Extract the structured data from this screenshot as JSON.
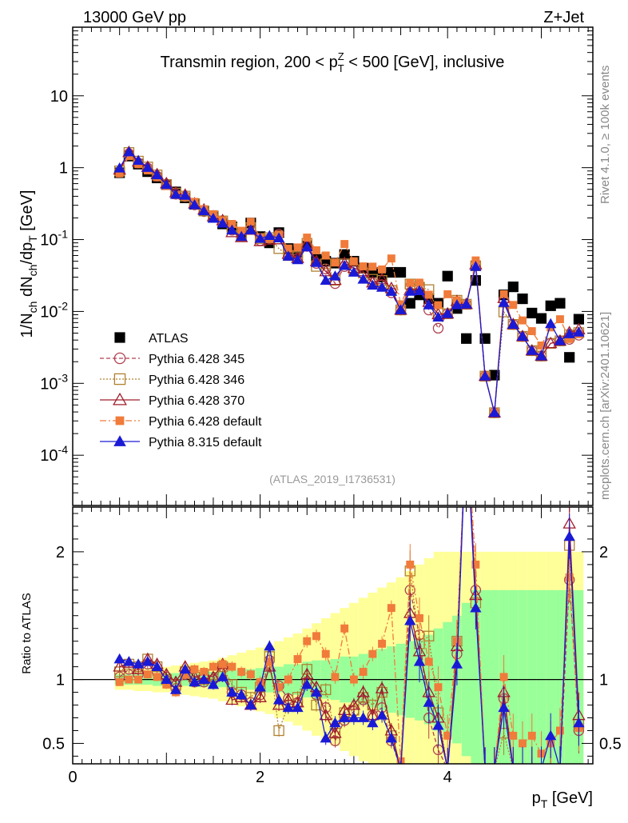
{
  "header": {
    "energy_label": "13000 GeV pp",
    "process_label": "Z+Jet"
  },
  "side_labels": {
    "rivet": "Rivet 4.1.0, ≥ 100k events",
    "mcplots": "mcplots.cern.ch [arXiv:2401.10621]"
  },
  "chart_data": {
    "type": "scatter",
    "title": "Transmin region, 200 < p_T^Z < 500 [GeV], inclusive",
    "analysis_tag": "(ATLAS_2019_I1736531)",
    "xlabel": "p_T [GeV]",
    "ylabel": "1/N_ch dN_ch/dp_T [GeV]",
    "ratio_ylabel": "Ratio to ATLAS",
    "xlim": [
      0,
      5.55
    ],
    "ylim": [
      2e-05,
      90
    ],
    "ratio_ylim": [
      0.34,
      2.35
    ],
    "yscale": "log",
    "x_ticks": [
      "0",
      "2",
      "4"
    ],
    "y_ticks": [
      "10^-4",
      "10^-3",
      "10^-2",
      "10^-1",
      "1",
      "10"
    ],
    "ratio_ticks": [
      "0.5",
      "1",
      "2"
    ],
    "legend_position": "bottom-left",
    "x": [
      0.5,
      0.6,
      0.7,
      0.8,
      0.9,
      1.0,
      1.1,
      1.2,
      1.3,
      1.4,
      1.5,
      1.6,
      1.7,
      1.8,
      1.9,
      2.0,
      2.1,
      2.2,
      2.3,
      2.4,
      2.5,
      2.6,
      2.7,
      2.8,
      2.9,
      3.0,
      3.1,
      3.2,
      3.3,
      3.4,
      3.5,
      3.6,
      3.7,
      3.8,
      3.9,
      4.0,
      4.1,
      4.2,
      4.3,
      4.4,
      4.5,
      4.6,
      4.7,
      4.8,
      4.9,
      5.0,
      5.1,
      5.2,
      5.3,
      5.4
    ],
    "reference": {
      "name": "ATLAS",
      "values": [
        0.85,
        1.45,
        1.12,
        0.88,
        0.72,
        0.58,
        0.46,
        0.38,
        0.31,
        0.25,
        0.205,
        0.165,
        0.15,
        0.125,
        0.17,
        0.11,
        0.09,
        0.125,
        0.075,
        0.067,
        0.082,
        0.053,
        0.05,
        0.047,
        0.062,
        0.05,
        0.04,
        0.035,
        0.03,
        0.035,
        0.035,
        0.013,
        0.017,
        0.015,
        0.013,
        0.031,
        0.011,
        0.0042,
        0.027,
        0.0042,
        0.0013,
        0.017,
        0.022,
        0.015,
        0.0095,
        0.008,
        0.012,
        0.013,
        0.0023,
        0.0078
      ],
      "band_inner_halfwidth": [
        0.04,
        0.04,
        0.04,
        0.04,
        0.05,
        0.05,
        0.05,
        0.05,
        0.06,
        0.06,
        0.06,
        0.06,
        0.07,
        0.08,
        0.08,
        0.09,
        0.1,
        0.1,
        0.12,
        0.12,
        0.14,
        0.15,
        0.15,
        0.16,
        0.18,
        0.18,
        0.2,
        0.22,
        0.24,
        0.26,
        0.28,
        0.3,
        0.32,
        0.35,
        0.4,
        0.45,
        0.5,
        0.6,
        0.7,
        0.7,
        0.7,
        0.7,
        0.7,
        0.7,
        0.7,
        0.7,
        0.7,
        0.7,
        0.7,
        0.7
      ],
      "band_outer_halfwidth": [
        0.08,
        0.08,
        0.09,
        0.09,
        0.1,
        0.1,
        0.11,
        0.12,
        0.13,
        0.14,
        0.15,
        0.17,
        0.19,
        0.21,
        0.23,
        0.25,
        0.27,
        0.3,
        0.33,
        0.36,
        0.4,
        0.44,
        0.48,
        0.52,
        0.56,
        0.6,
        0.64,
        0.68,
        0.72,
        0.76,
        0.8,
        0.85,
        0.9,
        0.95,
        1.0,
        1.0,
        1.0,
        1.0,
        1.0,
        1.0,
        1.0,
        1.0,
        1.0,
        1.0,
        1.0,
        1.0,
        1.0,
        1.0,
        1.0,
        1.0
      ]
    },
    "series": [
      {
        "name": "Pythia 6.428 345",
        "color": "#b04050",
        "marker": "open-circle",
        "dash": "5,3",
        "ratio": [
          1.02,
          1.08,
          1.04,
          1.12,
          1.06,
          1.02,
          0.93,
          1.04,
          0.98,
          0.98,
          1.0,
          1.1,
          0.9,
          0.88,
          0.82,
          0.88,
          1.15,
          0.95,
          0.85,
          0.82,
          0.98,
          0.88,
          0.78,
          0.52,
          0.68,
          0.75,
          0.84,
          0.72,
          0.78,
          0.52,
          0.3,
          1.7,
          1.35,
          0.7,
          0.45,
          0.3,
          1.2,
          3.0,
          1.7,
          0.3,
          0.3,
          0.85,
          0.3,
          0.3,
          0.3,
          0.3,
          0.3,
          0.3,
          1.78,
          0.6
        ]
      },
      {
        "name": "Pythia 6.428 346",
        "color": "#b08030",
        "marker": "open-square",
        "dash": "2,2",
        "ratio": [
          1.06,
          1.12,
          1.1,
          1.16,
          1.1,
          1.0,
          0.96,
          1.06,
          1.02,
          1.0,
          1.04,
          1.1,
          0.96,
          0.9,
          0.86,
          0.94,
          1.18,
          0.6,
          0.8,
          0.86,
          1.08,
          0.8,
          0.92,
          0.58,
          0.74,
          0.76,
          0.86,
          0.8,
          0.9,
          0.56,
          0.3,
          1.85,
          1.28,
          1.34,
          0.74,
          0.3,
          1.3,
          3.0,
          1.6,
          0.3,
          0.3,
          0.58,
          0.3,
          0.3,
          0.3,
          0.3,
          0.3,
          0.3,
          2.05,
          0.65
        ]
      },
      {
        "name": "Pythia 6.428 370",
        "color": "#a01c2c",
        "marker": "open-triangle",
        "dash": "",
        "ratio": [
          1.1,
          1.13,
          1.08,
          1.16,
          1.12,
          1.04,
          0.98,
          1.1,
          1.02,
          1.04,
          1.02,
          1.12,
          0.84,
          0.86,
          0.8,
          0.86,
          1.1,
          0.8,
          0.84,
          0.82,
          1.04,
          0.94,
          0.72,
          0.58,
          0.76,
          0.8,
          0.9,
          0.72,
          0.93,
          0.6,
          0.3,
          1.52,
          1.22,
          0.9,
          0.7,
          0.3,
          1.26,
          3.0,
          1.66,
          0.3,
          0.3,
          0.9,
          0.3,
          0.3,
          0.3,
          0.3,
          0.3,
          0.3,
          2.22,
          0.72
        ]
      },
      {
        "name": "Pythia 6.428 default",
        "color": "#f07b3a",
        "marker": "filled-square",
        "dash": "8,3,2,3",
        "ratio": [
          0.98,
          1.0,
          1.0,
          1.04,
          1.02,
          0.96,
          0.9,
          1.04,
          1.08,
          1.06,
          1.1,
          1.12,
          1.1,
          1.06,
          1.04,
          0.98,
          1.14,
          0.94,
          1.0,
          1.16,
          1.3,
          1.34,
          1.2,
          1.02,
          1.4,
          1.0,
          1.06,
          1.2,
          1.28,
          1.56,
          0.36,
          1.9,
          1.48,
          1.14,
          0.94,
          0.56,
          1.3,
          3.0,
          1.9,
          0.3,
          0.3,
          1.02,
          0.56,
          0.5,
          0.56,
          0.42,
          0.5,
          0.6,
          1.8,
          0.62
        ]
      },
      {
        "name": "Pythia 8.315 default",
        "color": "#1a1ad6",
        "marker": "filled-triangle",
        "dash": "",
        "ratio": [
          1.16,
          1.14,
          1.12,
          1.14,
          1.1,
          1.0,
          0.92,
          1.08,
          0.98,
          1.0,
          0.96,
          1.02,
          0.9,
          0.88,
          0.8,
          0.94,
          1.26,
          0.84,
          0.78,
          0.78,
          0.96,
          0.9,
          0.54,
          0.66,
          0.7,
          0.7,
          0.7,
          0.66,
          0.72,
          0.54,
          0.3,
          1.46,
          1.14,
          0.82,
          0.64,
          0.3,
          1.12,
          3.0,
          1.56,
          0.3,
          0.3,
          0.78,
          0.3,
          0.3,
          0.3,
          0.3,
          0.56,
          0.3,
          2.12,
          0.66
        ]
      }
    ]
  }
}
